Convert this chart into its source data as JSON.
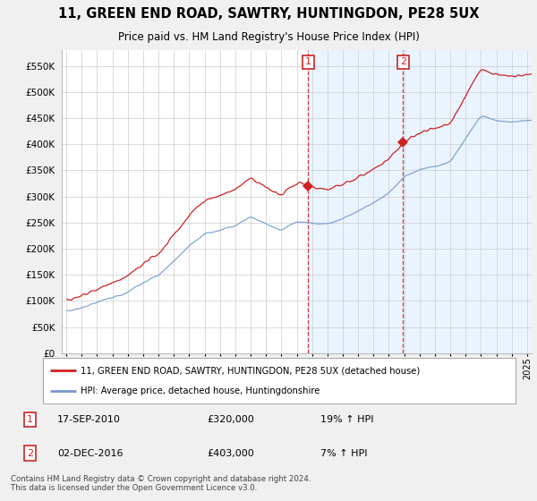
{
  "title": "11, GREEN END ROAD, SAWTRY, HUNTINGDON, PE28 5UX",
  "subtitle": "Price paid vs. HM Land Registry's House Price Index (HPI)",
  "legend_line1": "11, GREEN END ROAD, SAWTRY, HUNTINGDON, PE28 5UX (detached house)",
  "legend_line2": "HPI: Average price, detached house, Huntingdonshire",
  "annotation1_label": "1",
  "annotation1_date": "17-SEP-2010",
  "annotation1_price": "£320,000",
  "annotation1_change": "19% ↑ HPI",
  "annotation2_label": "2",
  "annotation2_date": "02-DEC-2016",
  "annotation2_price": "£403,000",
  "annotation2_change": "7% ↑ HPI",
  "footer": "Contains HM Land Registry data © Crown copyright and database right 2024.\nThis data is licensed under the Open Government Licence v3.0.",
  "sale1_x": 2010.75,
  "sale1_y": 320000,
  "sale2_x": 2016.92,
  "sale2_y": 403000,
  "red_color": "#cc2222",
  "blue_color": "#7799cc",
  "shade_color": "#ddeeff",
  "plot_bg": "#ffffff",
  "fig_bg": "#f0f0f0",
  "ylim": [
    0,
    580000
  ],
  "xlim_start": 1994.7,
  "xlim_end": 2025.3,
  "ytick_step": 50000
}
